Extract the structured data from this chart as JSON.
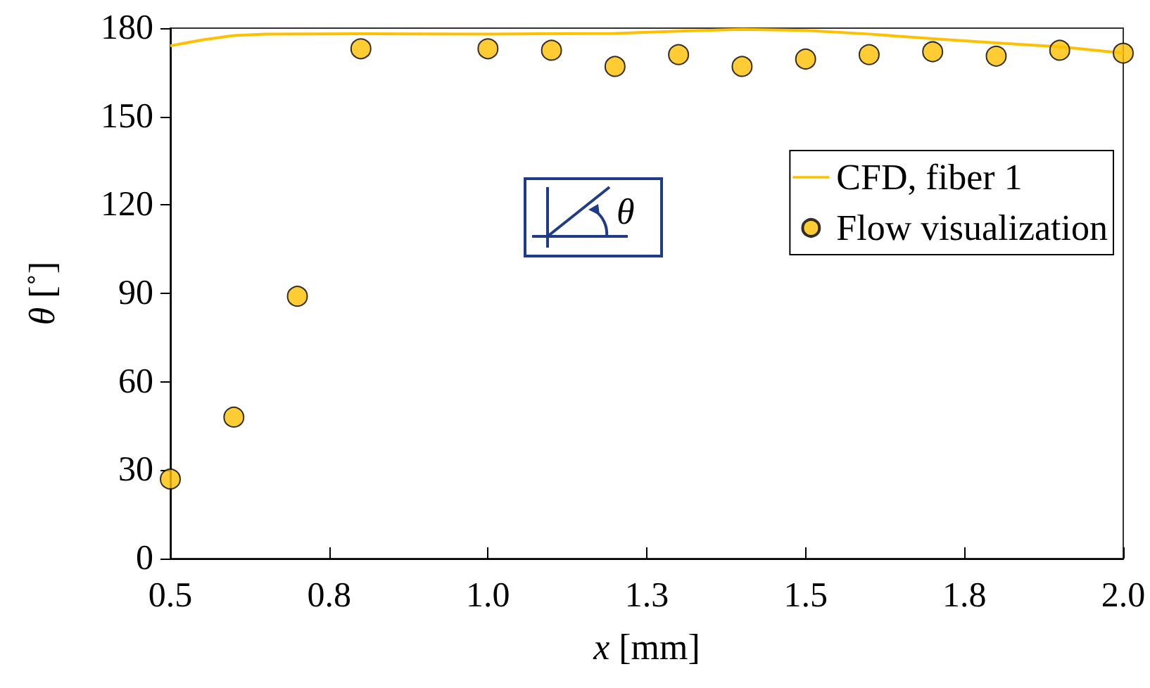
{
  "chart_data": {
    "type": "scatter",
    "xlabel": "x [mm]",
    "ylabel": "θ [˚]",
    "x": [
      0.5,
      0.6,
      0.7,
      0.8,
      1.0,
      1.1,
      1.2,
      1.3,
      1.4,
      1.5,
      1.6,
      1.7,
      1.8,
      1.9,
      2.0
    ],
    "series": [
      {
        "name": "CFD, fiber 1",
        "type": "line",
        "color": "#ffc000",
        "marker": "none",
        "line_style": "solid",
        "x": [
          0.5,
          0.55,
          0.6,
          0.65,
          0.8,
          1.0,
          1.2,
          1.3,
          1.4,
          1.5,
          1.6,
          1.7,
          1.8,
          1.9,
          2.0
        ],
        "values": [
          174,
          176,
          177.5,
          178,
          178.1,
          178,
          178.2,
          179,
          179.6,
          179.2,
          178,
          176.4,
          175,
          173.7,
          171.5
        ]
      },
      {
        "name": "Flow visualization",
        "type": "scatter",
        "color": "#ffc000",
        "marker": "circle",
        "values": [
          27,
          48,
          89,
          173,
          173,
          172.5,
          167,
          171,
          167,
          169.5,
          171,
          172,
          170.5,
          172.5,
          171.5
        ]
      }
    ],
    "xlim": [
      0.5,
      2.0
    ],
    "xticks": [
      0.5,
      {
        "value": 0.75,
        "label": "0.8"
      },
      {
        "value": 1.0,
        "label": "1.0"
      },
      {
        "value": 1.25,
        "label": "1.3"
      },
      1.5,
      {
        "value": 1.75,
        "label": "1.8"
      },
      {
        "value": 2.0,
        "label": "2.0"
      }
    ],
    "ylim": [
      0,
      180
    ],
    "yticks": [
      0,
      30,
      60,
      90,
      120,
      150,
      180
    ],
    "grid": false,
    "legend": "top right",
    "annotations": [
      "θ"
    ]
  }
}
